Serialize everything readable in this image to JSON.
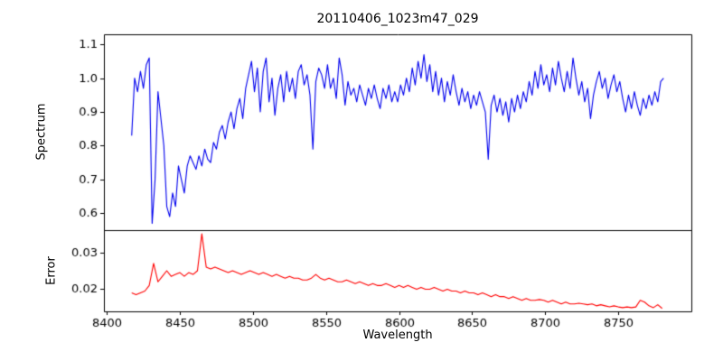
{
  "figure": {
    "background": "#ffffff",
    "axis_color": "#000000"
  },
  "chart_data": [
    {
      "type": "line",
      "title": "20110406_1023m47_029",
      "ylabel": "Spectrum",
      "xlabel": "",
      "color": "#0000ee",
      "xlim": [
        8398,
        8800
      ],
      "ylim": [
        0.55,
        1.13
      ],
      "yticks": [
        "0.6",
        "0.7",
        "0.8",
        "0.9",
        "1.0",
        "1.1"
      ],
      "xticks": [
        "8400",
        "8450",
        "8500",
        "8550",
        "8600",
        "8650",
        "8700",
        "8750"
      ],
      "show_xticklabels": false,
      "grid": false,
      "x_start": 8417,
      "x_step": 2,
      "y": [
        0.83,
        1.0,
        0.96,
        1.02,
        0.97,
        1.04,
        1.06,
        0.57,
        0.7,
        0.96,
        0.88,
        0.8,
        0.62,
        0.59,
        0.66,
        0.62,
        0.74,
        0.7,
        0.66,
        0.74,
        0.77,
        0.75,
        0.73,
        0.77,
        0.74,
        0.79,
        0.76,
        0.75,
        0.81,
        0.79,
        0.84,
        0.86,
        0.82,
        0.87,
        0.9,
        0.85,
        0.91,
        0.94,
        0.88,
        0.97,
        1.01,
        1.05,
        0.96,
        1.03,
        0.9,
        1.02,
        1.06,
        0.93,
        1.0,
        0.89,
        0.97,
        1.01,
        0.93,
        1.02,
        0.96,
        1.0,
        0.94,
        1.02,
        1.04,
        0.98,
        1.01,
        0.95,
        0.79,
        0.99,
        1.03,
        1.01,
        0.97,
        1.04,
        0.97,
        1.0,
        0.94,
        1.06,
        1.01,
        0.92,
        0.99,
        0.95,
        0.97,
        0.93,
        0.98,
        0.95,
        0.92,
        0.97,
        0.94,
        0.98,
        0.94,
        0.91,
        0.97,
        0.94,
        0.98,
        0.93,
        0.96,
        0.93,
        0.98,
        0.95,
        1.0,
        0.96,
        1.03,
        0.98,
        1.05,
        1.0,
        1.07,
        0.99,
        1.04,
        0.96,
        1.02,
        0.95,
        1.0,
        0.93,
        0.99,
        0.95,
        1.01,
        0.96,
        0.92,
        0.97,
        0.93,
        0.96,
        0.91,
        0.95,
        0.92,
        0.96,
        0.93,
        0.9,
        0.76,
        0.92,
        0.95,
        0.9,
        0.94,
        0.89,
        0.93,
        0.87,
        0.94,
        0.9,
        0.95,
        0.91,
        0.96,
        0.93,
        0.99,
        0.95,
        1.02,
        0.97,
        1.04,
        0.98,
        1.01,
        0.96,
        1.03,
        0.98,
        1.05,
        1.0,
        0.96,
        1.02,
        0.97,
        1.06,
        1.0,
        0.95,
        0.99,
        0.93,
        0.97,
        0.88,
        0.95,
        0.99,
        1.02,
        0.97,
        1.0,
        0.94,
        0.98,
        1.01,
        0.96,
        0.99,
        0.94,
        0.9,
        0.95,
        0.91,
        0.96,
        0.92,
        0.89,
        0.94,
        0.91,
        0.95,
        0.92,
        0.96,
        0.93,
        0.99,
        1.0
      ]
    },
    {
      "type": "line",
      "title": "",
      "ylabel": "Error",
      "xlabel": "Wavelength",
      "color": "#ff0000",
      "xlim": [
        8398,
        8800
      ],
      "ylim": [
        0.014,
        0.036
      ],
      "yticks": [
        "0.02",
        "0.03"
      ],
      "xticks": [
        "8400",
        "8450",
        "8500",
        "8550",
        "8600",
        "8650",
        "8700",
        "8750"
      ],
      "show_xticklabels": true,
      "grid": false,
      "x_start": 8417,
      "x_step": 3,
      "y": [
        0.019,
        0.0185,
        0.019,
        0.0195,
        0.021,
        0.027,
        0.022,
        0.0235,
        0.025,
        0.0235,
        0.024,
        0.0245,
        0.0235,
        0.0245,
        0.024,
        0.025,
        0.035,
        0.026,
        0.0255,
        0.026,
        0.0255,
        0.025,
        0.0245,
        0.025,
        0.0245,
        0.024,
        0.0245,
        0.025,
        0.0245,
        0.024,
        0.0245,
        0.024,
        0.0235,
        0.024,
        0.0235,
        0.023,
        0.0235,
        0.023,
        0.023,
        0.0225,
        0.0225,
        0.023,
        0.024,
        0.023,
        0.0225,
        0.023,
        0.0225,
        0.022,
        0.022,
        0.0225,
        0.022,
        0.0215,
        0.022,
        0.0215,
        0.021,
        0.0215,
        0.021,
        0.021,
        0.0215,
        0.021,
        0.0205,
        0.021,
        0.0205,
        0.021,
        0.0205,
        0.02,
        0.0205,
        0.02,
        0.02,
        0.0205,
        0.02,
        0.0195,
        0.02,
        0.0195,
        0.0195,
        0.019,
        0.0195,
        0.019,
        0.019,
        0.0185,
        0.019,
        0.0185,
        0.018,
        0.0185,
        0.018,
        0.018,
        0.0175,
        0.018,
        0.0175,
        0.017,
        0.0175,
        0.017,
        0.017,
        0.0172,
        0.017,
        0.0165,
        0.017,
        0.0165,
        0.016,
        0.0165,
        0.016,
        0.016,
        0.0162,
        0.016,
        0.0158,
        0.016,
        0.0155,
        0.0158,
        0.0155,
        0.0152,
        0.0155,
        0.0152,
        0.015,
        0.0152,
        0.015,
        0.0152,
        0.017,
        0.0165,
        0.0155,
        0.015,
        0.0158,
        0.0148
      ]
    }
  ]
}
